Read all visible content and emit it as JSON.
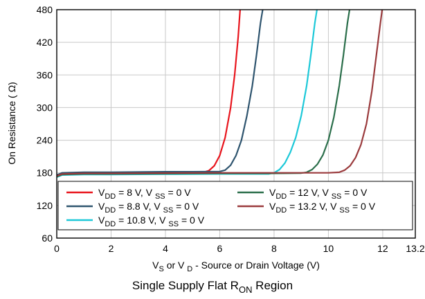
{
  "chart_data": {
    "type": "line",
    "title": "",
    "caption": {
      "main": "Single Supply Flat R",
      "sub": "ON",
      "tail": " Region"
    },
    "xlabel": {
      "pre": "V",
      "sub1": "S",
      "mid": " or V ",
      "sub2": "D",
      "post": " - Source or Drain Voltage (V)"
    },
    "ylabel": "On Resistance (  Ω)",
    "xlim": [
      0,
      13.2
    ],
    "ylim": [
      60,
      480
    ],
    "xticks": [
      0,
      2,
      4,
      6,
      8,
      10,
      12,
      13.2
    ],
    "xtick_labels": [
      "0",
      "2",
      "4",
      "6",
      "8",
      "10",
      "12",
      "13.2"
    ],
    "yticks": [
      60,
      120,
      180,
      240,
      300,
      360,
      420,
      480
    ],
    "ytick_labels": [
      "60",
      "120",
      "180",
      "240",
      "300",
      "360",
      "420",
      "480"
    ],
    "grid": true,
    "legend_position": "bottom-left",
    "series": [
      {
        "name": {
          "a": "V",
          "b": "DD",
          "c": " = 8 V, V ",
          "d": "SS",
          "e": " = 0 V"
        },
        "color": "#e8141c",
        "x": [
          0,
          0.2,
          1,
          2,
          3,
          4,
          5,
          5.4,
          5.6,
          5.8,
          6.0,
          6.2,
          6.4,
          6.55,
          6.68,
          6.75
        ],
        "y": [
          174,
          178,
          179,
          179,
          179.5,
          180,
          180.5,
          181,
          184,
          193,
          212,
          245,
          300,
          360,
          430,
          480
        ]
      },
      {
        "name": {
          "a": "V",
          "b": "DD",
          "c": " = 8.8 V, V ",
          "d": "SS",
          "e": " = 0 V"
        },
        "color": "#2e546e",
        "x": [
          0,
          0.2,
          1,
          2,
          3,
          4,
          5,
          6,
          6.2,
          6.4,
          6.6,
          6.8,
          7.0,
          7.2,
          7.35,
          7.5,
          7.58
        ],
        "y": [
          176,
          180,
          181,
          181,
          181.5,
          182,
          182,
          182.5,
          185,
          194,
          212,
          240,
          285,
          340,
          395,
          455,
          480
        ]
      },
      {
        "name": {
          "a": "V",
          "b": "DD",
          "c": " = 10.8 V, V ",
          "d": "SS",
          "e": " = 0 V"
        },
        "color": "#1cc8d8",
        "x": [
          0,
          0.2,
          1,
          2,
          4,
          6,
          7.8,
          8.0,
          8.2,
          8.4,
          8.6,
          8.8,
          9.0,
          9.2,
          9.35,
          9.5,
          9.58
        ],
        "y": [
          172,
          176,
          177,
          177,
          177.5,
          178,
          178,
          180,
          186,
          198,
          218,
          245,
          285,
          340,
          395,
          455,
          480
        ]
      },
      {
        "name": {
          "a": "V",
          "b": "DD",
          "c": " = 12 V, V ",
          "d": "SS",
          "e": " = 0 V"
        },
        "color": "#2a6e4a",
        "x": [
          0,
          0.2,
          1,
          2,
          4,
          6,
          8,
          9.0,
          9.2,
          9.4,
          9.6,
          9.8,
          10.0,
          10.2,
          10.4,
          10.55,
          10.7,
          10.78
        ],
        "y": [
          173,
          177,
          178,
          178,
          178.5,
          179,
          179,
          179.5,
          181,
          186,
          196,
          213,
          240,
          282,
          340,
          395,
          455,
          480
        ]
      },
      {
        "name": {
          "a": "V",
          "b": "DD",
          "c": " = 13.2 V, V ",
          "d": "SS",
          "e": " = 0 V"
        },
        "color": "#9a3a3c",
        "x": [
          0,
          0.2,
          1,
          2,
          4,
          6,
          8,
          10,
          10.4,
          10.6,
          10.8,
          11.0,
          11.2,
          11.4,
          11.6,
          11.75,
          11.9,
          11.98
        ],
        "y": [
          174,
          178,
          179,
          179,
          179.5,
          180,
          180,
          180,
          181,
          185,
          193,
          208,
          232,
          270,
          330,
          390,
          450,
          480
        ]
      }
    ]
  }
}
